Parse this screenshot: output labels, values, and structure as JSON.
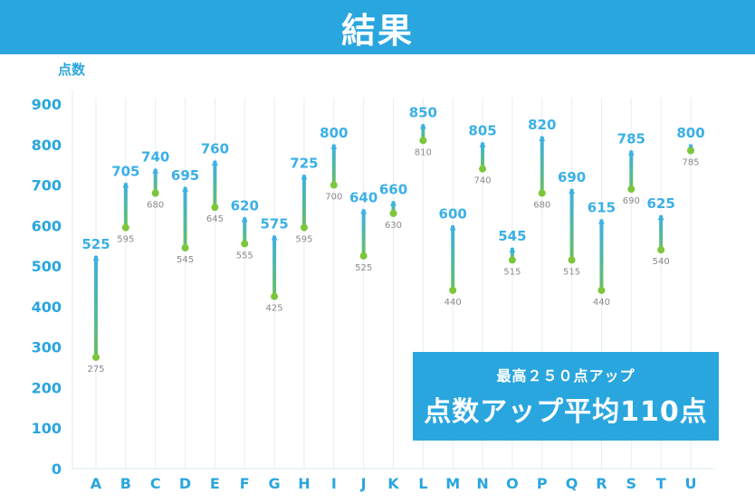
{
  "header": {
    "title": "結果"
  },
  "summary": {
    "subtitle": "最高２５０点アップ",
    "headline": "点数アップ平均110点"
  },
  "colors": {
    "accent_blue": "#2aa6df",
    "before_green": "#7cc63a",
    "after_arrow_blue": "#3ab0e6",
    "before_label_gray": "#8a8a8a",
    "axis_text": "#2aa6df"
  },
  "chart_data": {
    "type": "range",
    "ylabel": "点数",
    "ylim": [
      0,
      900
    ],
    "yticks": [
      "0",
      "100",
      "200",
      "300",
      "400",
      "500",
      "600",
      "700",
      "800",
      "900"
    ],
    "categories": [
      "A",
      "B",
      "C",
      "D",
      "E",
      "F",
      "G",
      "H",
      "I",
      "J",
      "K",
      "L",
      "M",
      "N",
      "O",
      "P",
      "Q",
      "R",
      "S",
      "T",
      "U"
    ],
    "series": [
      {
        "values": [
          275,
          595,
          680,
          545,
          645,
          555,
          425,
          595,
          700,
          525,
          630,
          810,
          440,
          740,
          515,
          680,
          515,
          440,
          690,
          540,
          785
        ]
      },
      {
        "values": [
          525,
          705,
          740,
          695,
          760,
          620,
          575,
          725,
          800,
          640,
          660,
          850,
          600,
          805,
          545,
          820,
          690,
          615,
          785,
          625,
          800
        ]
      }
    ],
    "grid": true
  }
}
